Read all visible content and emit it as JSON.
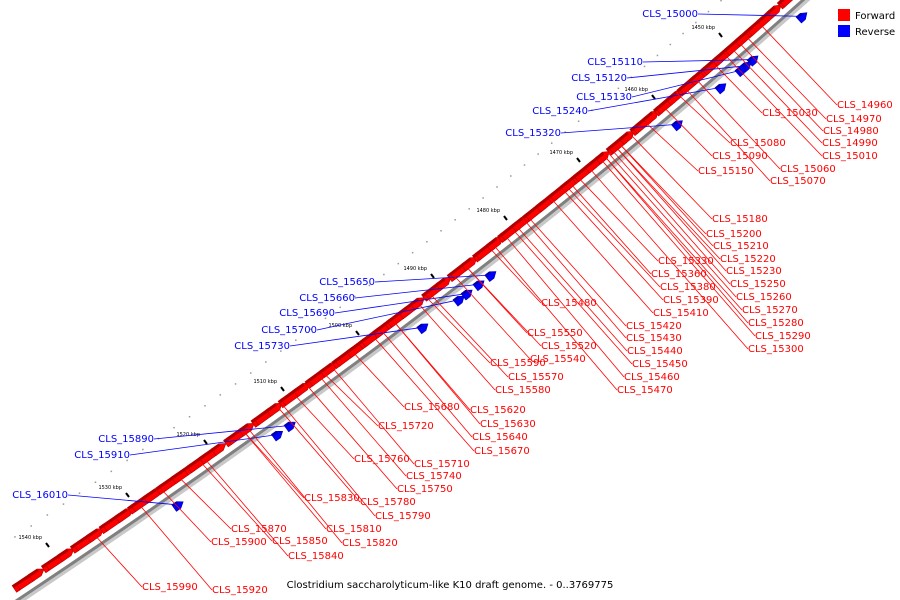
{
  "title": "Clostridium saccharolyticum-like K10 draft genome. - 0..3769775",
  "legend": [
    {
      "label": "Forward",
      "color": "#ff0000"
    },
    {
      "label": "Reverse",
      "color": "#0000ff"
    }
  ],
  "colors": {
    "forward": "#ff0000",
    "reverse": "#0000ff",
    "backbone": "#808080"
  },
  "scale_ticks": [
    "1450 kbp",
    "1460 kbp",
    "1470 kbp",
    "1480 kbp",
    "1490 kbp",
    "1500 kbp",
    "1510 kbp",
    "1520 kbp",
    "1530 kbp",
    "1540 kbp"
  ],
  "reverse_genes": [
    "CLS_15000",
    "CLS_15110",
    "CLS_15120",
    "CLS_15130",
    "CLS_15240",
    "CLS_15320",
    "CLS_15650",
    "CLS_15660",
    "CLS_15690",
    "CLS_15700",
    "CLS_15730",
    "CLS_15890",
    "CLS_15910",
    "CLS_16010"
  ],
  "forward_genes": [
    "CLS_14960",
    "CLS_14970",
    "CLS_14980",
    "CLS_14990",
    "CLS_15010",
    "CLS_15030",
    "CLS_15060",
    "CLS_15070",
    "CLS_15080",
    "CLS_15090",
    "CLS_15150",
    "CLS_15180",
    "CLS_15200",
    "CLS_15210",
    "CLS_15220",
    "CLS_15230",
    "CLS_15250",
    "CLS_15260",
    "CLS_15270",
    "CLS_15280",
    "CLS_15290",
    "CLS_15300",
    "CLS_15330",
    "CLS_15360",
    "CLS_15380",
    "CLS_15390",
    "CLS_15410",
    "CLS_15420",
    "CLS_15430",
    "CLS_15440",
    "CLS_15450",
    "CLS_15460",
    "CLS_15470",
    "CLS_15480",
    "CLS_15520",
    "CLS_15540",
    "CLS_15550",
    "CLS_15570",
    "CLS_15580",
    "CLS_15590",
    "CLS_15620",
    "CLS_15630",
    "CLS_15640",
    "CLS_15670",
    "CLS_15680",
    "CLS_15710",
    "CLS_15720",
    "CLS_15740",
    "CLS_15750",
    "CLS_15760",
    "CLS_15780",
    "CLS_15790",
    "CLS_15810",
    "CLS_15820",
    "CLS_15830",
    "CLS_15840",
    "CLS_15850",
    "CLS_15870",
    "CLS_15900",
    "CLS_15920",
    "CLS_15990"
  ]
}
